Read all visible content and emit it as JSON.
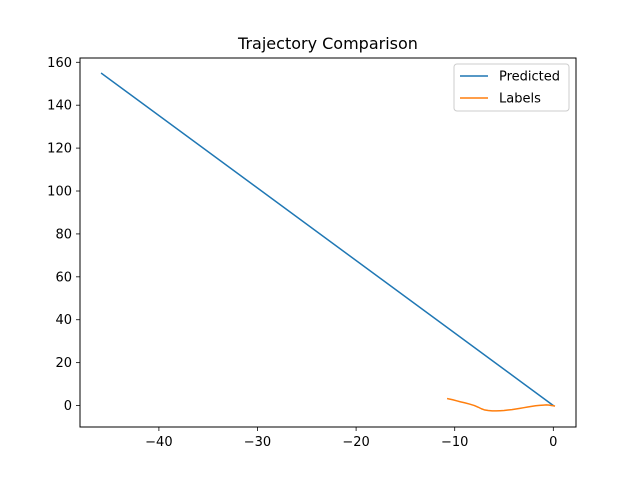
{
  "chart_data": {
    "type": "line",
    "title": "Trajectory Comparison",
    "xlabel": "",
    "ylabel": "",
    "xlim": [
      -48,
      2.3
    ],
    "ylim": [
      -10,
      162
    ],
    "x_ticks": [
      -40,
      -30,
      -20,
      -10,
      0
    ],
    "y_ticks": [
      0,
      20,
      40,
      60,
      80,
      100,
      120,
      140,
      160
    ],
    "x_tick_labels": [
      "−40",
      "−30",
      "−20",
      "−10",
      "0"
    ],
    "y_tick_labels": [
      "0",
      "20",
      "40",
      "60",
      "80",
      "100",
      "120",
      "140",
      "160"
    ],
    "grid": false,
    "legend_position": "upper-right",
    "series": [
      {
        "name": "Predicted",
        "color": "#1f77b4",
        "x": [
          -45.8,
          0.0
        ],
        "y": [
          154.8,
          0.0
        ]
      },
      {
        "name": "Labels",
        "color": "#ff7f0e",
        "x": [
          -10.7,
          -10.5,
          -10.2,
          -9.8,
          -9.4,
          -9.0,
          -8.5,
          -8.0,
          -7.6,
          -7.3,
          -7.0,
          -6.6,
          -6.2,
          -5.8,
          -5.4,
          -5.0,
          -4.6,
          -4.2,
          -3.8,
          -3.4,
          -3.0,
          -2.6,
          -2.2,
          -1.8,
          -1.4,
          -1.0,
          -0.7,
          -0.4,
          -0.2,
          0.0,
          0.1
        ],
        "y": [
          3.2,
          3.0,
          2.7,
          2.2,
          1.7,
          1.3,
          0.7,
          0.0,
          -0.8,
          -1.5,
          -2.0,
          -2.3,
          -2.5,
          -2.5,
          -2.4,
          -2.3,
          -2.1,
          -1.9,
          -1.6,
          -1.3,
          -1.0,
          -0.7,
          -0.4,
          -0.1,
          0.1,
          0.2,
          0.3,
          0.2,
          0.0,
          -0.1,
          -0.2
        ]
      }
    ]
  }
}
